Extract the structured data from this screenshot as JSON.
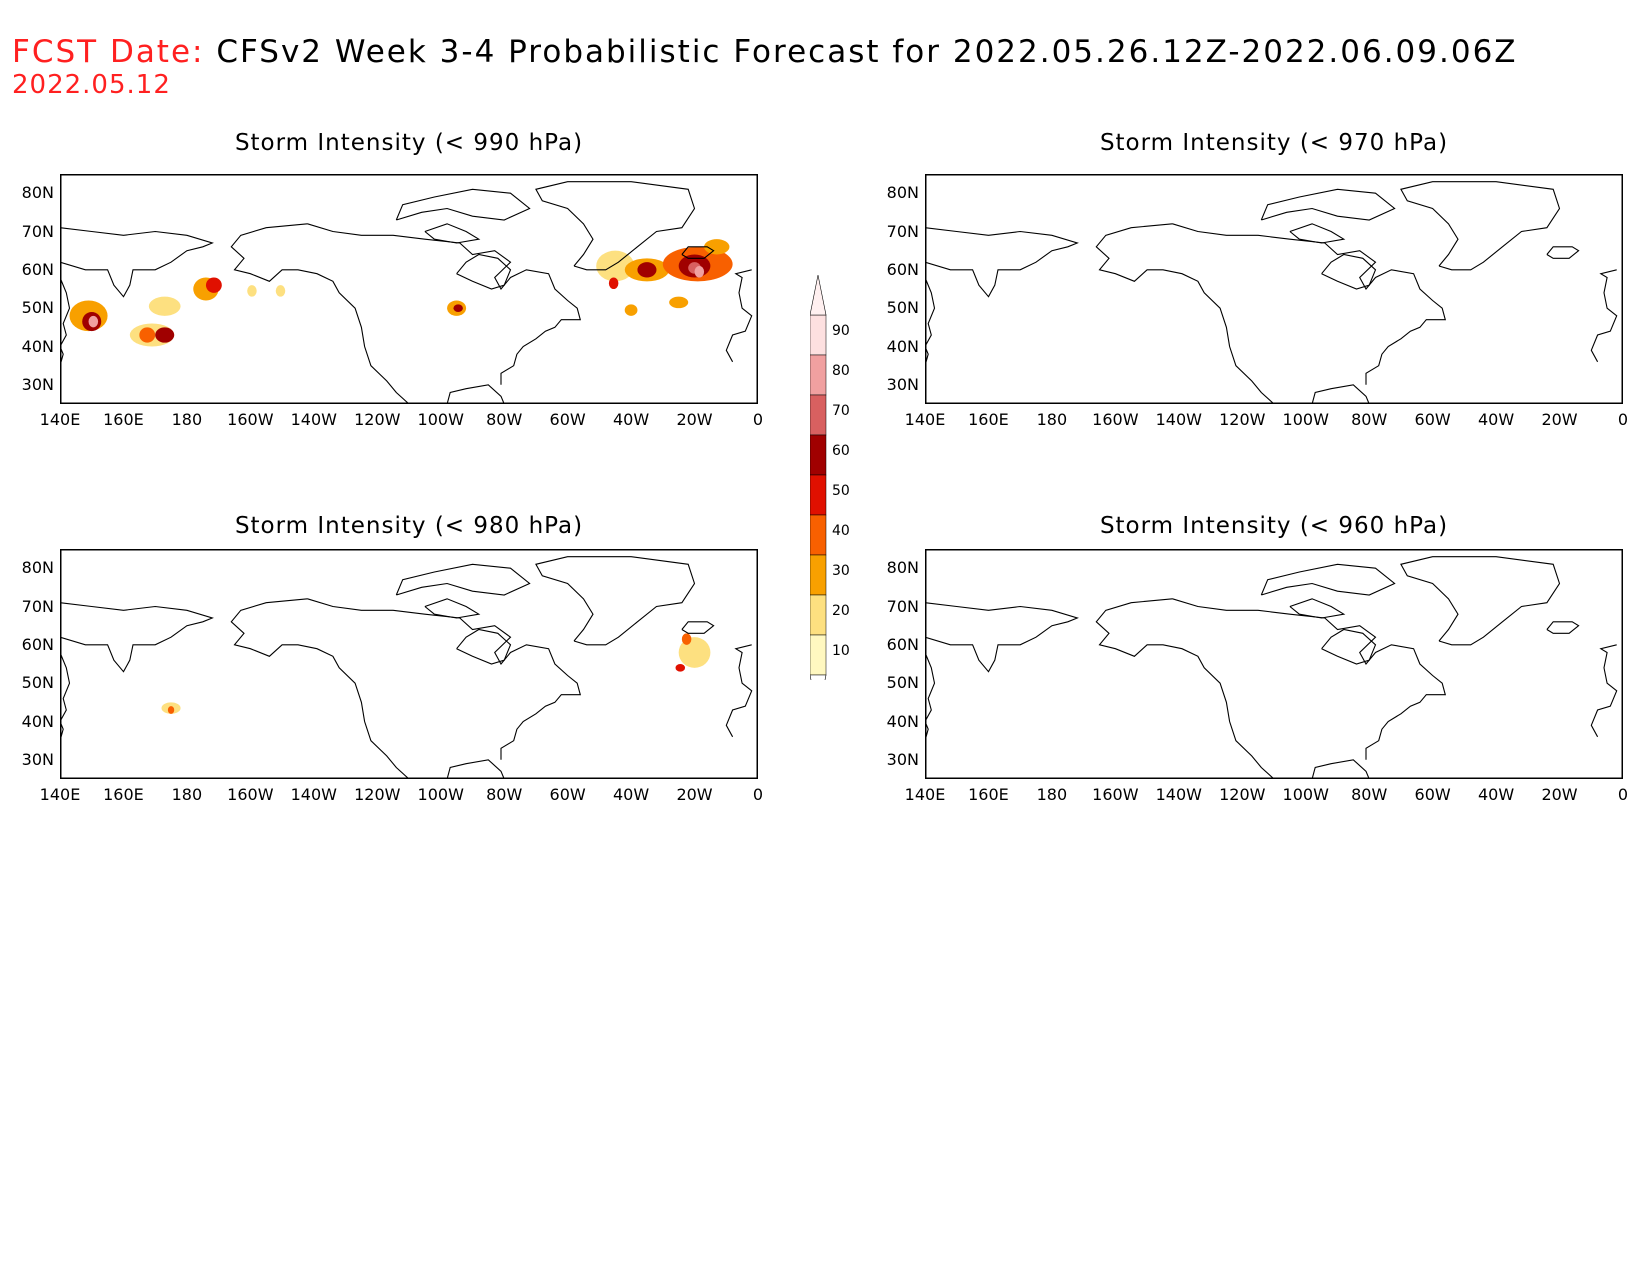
{
  "header": {
    "label": "FCST Date:",
    "title": "CFSv2 Week 3-4 Probabilistic Forecast for 2022.05.26.12Z-2022.06.09.06Z",
    "date": "2022.05.12"
  },
  "panels": [
    {
      "title": "Storm Intensity (< 990 hPa)"
    },
    {
      "title": "Storm Intensity (< 970 hPa)"
    },
    {
      "title": "Storm Intensity (< 980 hPa)"
    },
    {
      "title": "Storm Intensity (< 960 hPa)"
    }
  ],
  "axes": {
    "lat_labels": [
      "80N",
      "70N",
      "60N",
      "50N",
      "40N",
      "30N"
    ],
    "lon_labels": [
      "140E",
      "160E",
      "180",
      "160W",
      "140W",
      "120W",
      "100W",
      "80W",
      "60W",
      "40W",
      "20W",
      "0"
    ]
  },
  "colorbar": {
    "ticks": [
      "90",
      "80",
      "70",
      "60",
      "50",
      "40",
      "30",
      "20",
      "10"
    ],
    "colors": [
      "#fde0e0",
      "#f0a0a0",
      "#d86060",
      "#a00000",
      "#e01000",
      "#f86000",
      "#f8a000",
      "#fde080",
      "#fff8c0"
    ]
  }
}
